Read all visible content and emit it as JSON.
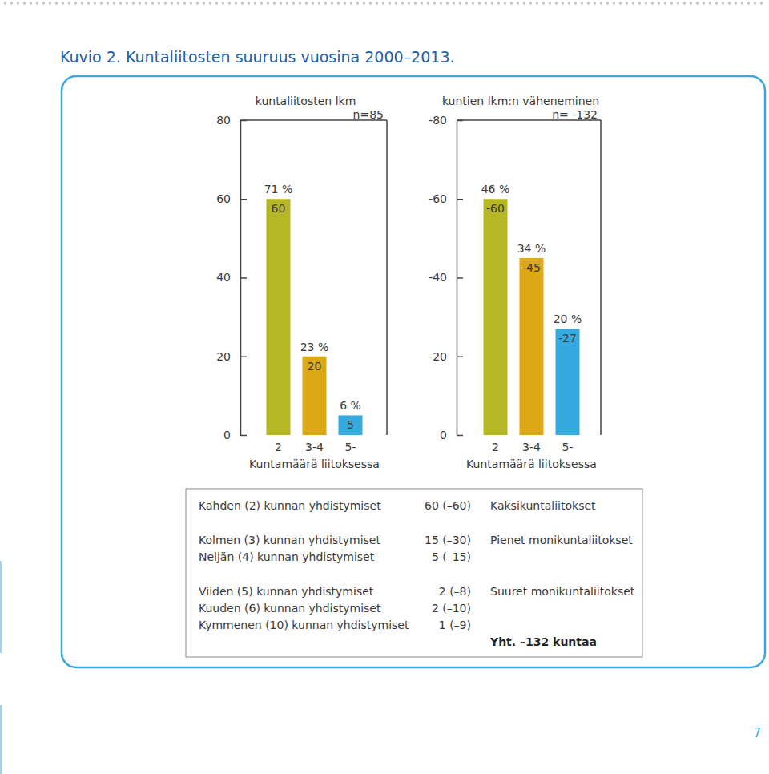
{
  "title": "Kuvio 2. Kuntaliitosten suuruus vuosina 2000–2013.",
  "chart_data": [
    {
      "type": "bar",
      "title": "kuntaliitosten lkm",
      "annotation": "n=85",
      "xlabel": "Kuntamäärä liitoksessa",
      "categories": [
        "2",
        "3-4",
        "5-"
      ],
      "values": [
        60,
        20,
        5
      ],
      "share_labels": [
        "71 %",
        "23 %",
        "6 %"
      ],
      "colors": [
        "#b5b824",
        "#dca815",
        "#36a9df"
      ],
      "ylim": [
        0,
        80
      ],
      "yticks": [
        0,
        20,
        40,
        60,
        80
      ],
      "grid": false,
      "data_labels": true
    },
    {
      "type": "bar",
      "title": "kuntien lkm:n väheneminen",
      "annotation": "n= -132",
      "xlabel": "Kuntamäärä liitoksessa",
      "categories": [
        "2",
        "3-4",
        "5-"
      ],
      "values": [
        -60,
        -45,
        -27
      ],
      "share_labels": [
        "46 %",
        "34 %",
        "20 %"
      ],
      "colors": [
        "#b5b824",
        "#dca815",
        "#36a9df"
      ],
      "ylim": [
        0,
        -80
      ],
      "yticks": [
        0,
        -20,
        -40,
        -60,
        -80
      ],
      "grid": false,
      "data_labels": true
    }
  ],
  "table": {
    "groups": [
      {
        "label": "Kaksikuntaliitokset",
        "rows": [
          [
            "Kahden (2) kunnan yhdistymiset",
            "60 (–60)"
          ]
        ]
      },
      {
        "label": "Pienet monikuntaliitokset",
        "rows": [
          [
            "Kolmen (3) kunnan yhdistymiset",
            "15 (–30)"
          ],
          [
            "Neljän (4) kunnan yhdistymiset",
            "5 (–15)"
          ]
        ]
      },
      {
        "label": "Suuret monikuntaliitokset",
        "rows": [
          [
            "Viiden (5) kunnan yhdistymiset",
            "2 (–8)"
          ],
          [
            "Kuuden (6) kunnan yhdistymiset",
            "2 (–10)"
          ],
          [
            "Kymmenen (10) kunnan yhdistymiset",
            "1 (–9)"
          ]
        ]
      }
    ],
    "total": "Yht. –132 kuntaa"
  },
  "page_number": 7
}
